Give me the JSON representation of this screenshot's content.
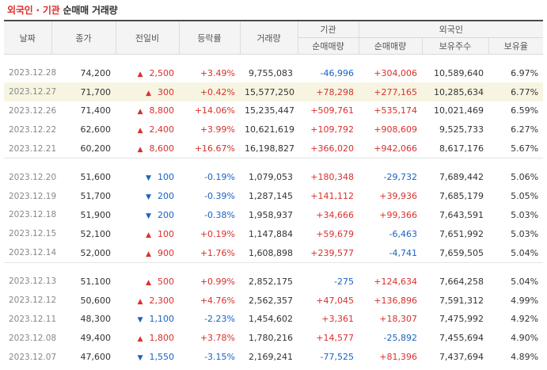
{
  "title": {
    "part1": "외국인 · 기관",
    "part2": "순매매 거래량"
  },
  "headers": {
    "date": "날짜",
    "close": "종가",
    "change": "전일비",
    "rate": "등락률",
    "volume": "거래량",
    "institution": "기관",
    "foreign": "외국인",
    "inst_net": "순매매량",
    "foreign_net": "순매매량",
    "holdings": "보유주수",
    "ratio": "보유율"
  },
  "colors": {
    "up": "#d9302c",
    "down": "#1a62c4",
    "highlight": "#f7f5e2"
  },
  "groups": [
    [
      {
        "date": "2023.12.28",
        "close": "74,200",
        "dir": "up",
        "change": "2,500",
        "rate": "+3.49%",
        "volume": "9,755,083",
        "inst": "-46,996",
        "foreign": "+304,006",
        "holdings": "10,589,640",
        "ratio": "6.97%"
      },
      {
        "date": "2023.12.27",
        "close": "71,700",
        "dir": "up",
        "change": "300",
        "rate": "+0.42%",
        "volume": "15,577,250",
        "inst": "+78,298",
        "foreign": "+277,165",
        "holdings": "10,285,634",
        "ratio": "6.77%",
        "highlight": true
      },
      {
        "date": "2023.12.26",
        "close": "71,400",
        "dir": "up",
        "change": "8,800",
        "rate": "+14.06%",
        "volume": "15,235,447",
        "inst": "+509,761",
        "foreign": "+535,174",
        "holdings": "10,021,469",
        "ratio": "6.59%"
      },
      {
        "date": "2023.12.22",
        "close": "62,600",
        "dir": "up",
        "change": "2,400",
        "rate": "+3.99%",
        "volume": "10,621,619",
        "inst": "+109,792",
        "foreign": "+908,609",
        "holdings": "9,525,733",
        "ratio": "6.27%"
      },
      {
        "date": "2023.12.21",
        "close": "60,200",
        "dir": "up",
        "change": "8,600",
        "rate": "+16.67%",
        "volume": "16,198,827",
        "inst": "+366,020",
        "foreign": "+942,066",
        "holdings": "8,617,176",
        "ratio": "5.67%"
      }
    ],
    [
      {
        "date": "2023.12.20",
        "close": "51,600",
        "dir": "down",
        "change": "100",
        "rate": "-0.19%",
        "volume": "1,079,053",
        "inst": "+180,348",
        "foreign": "-29,732",
        "holdings": "7,689,442",
        "ratio": "5.06%"
      },
      {
        "date": "2023.12.19",
        "close": "51,700",
        "dir": "down",
        "change": "200",
        "rate": "-0.39%",
        "volume": "1,287,145",
        "inst": "+141,112",
        "foreign": "+39,936",
        "holdings": "7,685,179",
        "ratio": "5.05%"
      },
      {
        "date": "2023.12.18",
        "close": "51,900",
        "dir": "down",
        "change": "200",
        "rate": "-0.38%",
        "volume": "1,958,937",
        "inst": "+34,666",
        "foreign": "+99,366",
        "holdings": "7,643,591",
        "ratio": "5.03%"
      },
      {
        "date": "2023.12.15",
        "close": "52,100",
        "dir": "up",
        "change": "100",
        "rate": "+0.19%",
        "volume": "1,147,884",
        "inst": "+59,679",
        "foreign": "-6,463",
        "holdings": "7,651,992",
        "ratio": "5.03%"
      },
      {
        "date": "2023.12.14",
        "close": "52,000",
        "dir": "up",
        "change": "900",
        "rate": "+1.76%",
        "volume": "1,608,898",
        "inst": "+239,577",
        "foreign": "-4,741",
        "holdings": "7,659,505",
        "ratio": "5.04%"
      }
    ],
    [
      {
        "date": "2023.12.13",
        "close": "51,100",
        "dir": "up",
        "change": "500",
        "rate": "+0.99%",
        "volume": "2,852,175",
        "inst": "-275",
        "foreign": "+124,634",
        "holdings": "7,664,258",
        "ratio": "5.04%"
      },
      {
        "date": "2023.12.12",
        "close": "50,600",
        "dir": "up",
        "change": "2,300",
        "rate": "+4.76%",
        "volume": "2,562,357",
        "inst": "+47,045",
        "foreign": "+136,896",
        "holdings": "7,591,312",
        "ratio": "4.99%"
      },
      {
        "date": "2023.12.11",
        "close": "48,300",
        "dir": "down",
        "change": "1,100",
        "rate": "-2.23%",
        "volume": "1,454,602",
        "inst": "+3,361",
        "foreign": "+18,307",
        "holdings": "7,475,992",
        "ratio": "4.92%"
      },
      {
        "date": "2023.12.08",
        "close": "49,400",
        "dir": "up",
        "change": "1,800",
        "rate": "+3.78%",
        "volume": "1,780,216",
        "inst": "+14,577",
        "foreign": "-25,892",
        "holdings": "7,455,694",
        "ratio": "4.90%"
      },
      {
        "date": "2023.12.07",
        "close": "47,600",
        "dir": "down",
        "change": "1,550",
        "rate": "-3.15%",
        "volume": "2,169,241",
        "inst": "-77,525",
        "foreign": "+81,396",
        "holdings": "7,437,694",
        "ratio": "4.89%"
      }
    ]
  ]
}
